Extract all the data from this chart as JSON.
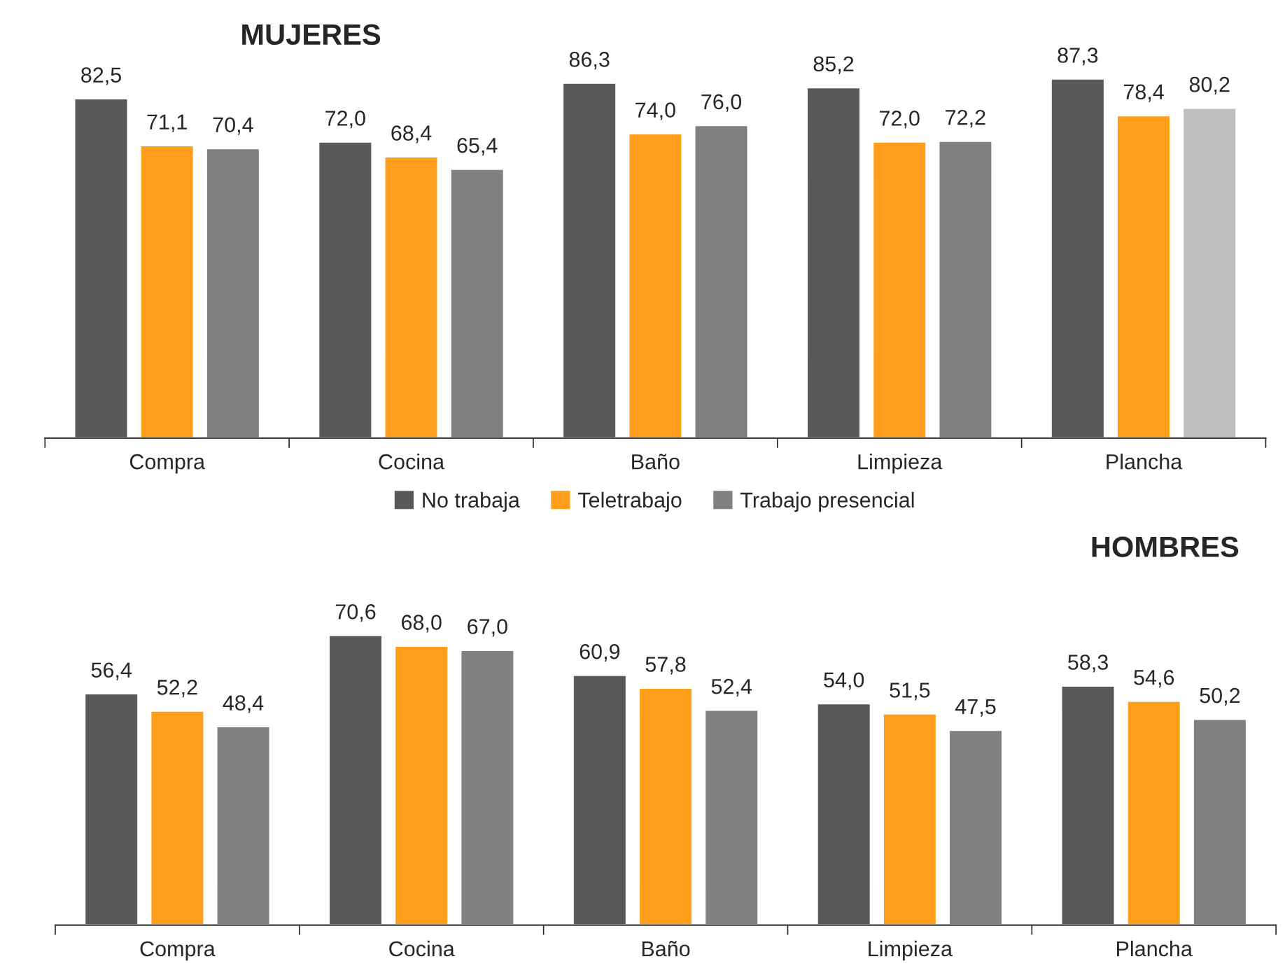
{
  "chart_data": [
    {
      "type": "bar",
      "title": "MUJERES",
      "categories": [
        "Compra",
        "Cocina",
        "Baño",
        "Limpieza",
        "Plancha"
      ],
      "legend": "bottom",
      "series": [
        {
          "name": "No trabaja",
          "color": "#595959",
          "values": [
            82.5,
            72.0,
            86.3,
            85.2,
            87.3
          ],
          "value_labels": [
            "82,5",
            "72,0",
            "86,3",
            "85,2",
            "87,3"
          ]
        },
        {
          "name": "Teletrabajo",
          "color": "#ff9e1b",
          "values": [
            71.1,
            68.4,
            74.0,
            72.0,
            78.4
          ],
          "value_labels": [
            "71,1",
            "68,4",
            "74,0",
            "72,0",
            "78,4"
          ]
        },
        {
          "name": "Trabajo presencial",
          "color": "#808080",
          "colors": [
            "#808080",
            "#808080",
            "#808080",
            "#808080",
            "#bfbfbf"
          ],
          "values": [
            70.4,
            65.4,
            76.0,
            72.2,
            80.2
          ],
          "value_labels": [
            "70,4",
            "65,4",
            "76,0",
            "72,2",
            "80,2"
          ]
        }
      ]
    },
    {
      "type": "bar",
      "title": "HOMBRES",
      "categories": [
        "Compra",
        "Cocina",
        "Baño",
        "Limpieza",
        "Plancha"
      ],
      "series": [
        {
          "color": "#595959",
          "values": [
            56.4,
            70.6,
            60.9,
            54.0,
            58.3
          ],
          "value_labels": [
            "56,4",
            "70,6",
            "60,9",
            "54,0",
            "58,3"
          ]
        },
        {
          "color": "#ff9e1b",
          "values": [
            52.2,
            68.0,
            57.8,
            51.5,
            54.6
          ],
          "value_labels": [
            "52,2",
            "68,0",
            "57,8",
            "51,5",
            "54,6"
          ]
        },
        {
          "color": "#808080",
          "values": [
            48.4,
            67.0,
            52.4,
            47.5,
            50.2
          ],
          "value_labels": [
            "48,4",
            "67,0",
            "52,4",
            "47,5",
            "50,2"
          ]
        }
      ]
    }
  ]
}
